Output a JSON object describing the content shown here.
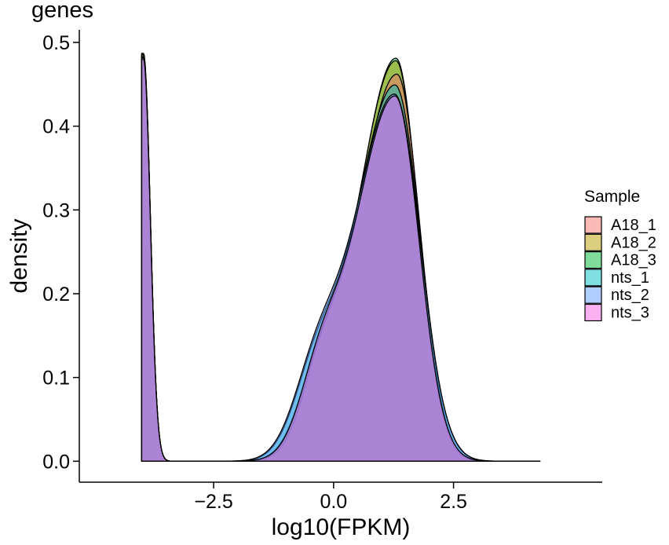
{
  "chart_data": {
    "type": "area",
    "title": "genes",
    "xlabel": "log10(FPKM)",
    "ylabel": "density",
    "xlim": [
      -5.3,
      5.6
    ],
    "ylim": [
      -0.025,
      0.515
    ],
    "xticks": [
      -2.5,
      0.0,
      2.5
    ],
    "xtick_labels": [
      "−2.5",
      "0.0",
      "2.5"
    ],
    "yticks": [
      0.0,
      0.1,
      0.2,
      0.3,
      0.4,
      0.5
    ],
    "ytick_labels": [
      "0.0",
      "0.1",
      "0.2",
      "0.3",
      "0.4",
      "0.5"
    ],
    "grid": false,
    "legend": {
      "title": "Sample",
      "position": "right"
    },
    "x_range": [
      -4.0,
      4.3
    ],
    "series": [
      {
        "name": "A18_1",
        "color": "#F8766D",
        "spike_peak": 0.485,
        "main_peak": 0.462,
        "main_mode": 1.32,
        "main_sd_left": 0.82,
        "main_sd_right": 0.48,
        "shoulder_peak": 0.082,
        "shoulder_mode": -0.25,
        "shoulder_sd": 0.42
      },
      {
        "name": "A18_2",
        "color": "#B79F00",
        "spike_peak": 0.487,
        "main_peak": 0.478,
        "main_mode": 1.3,
        "main_sd_left": 0.8,
        "main_sd_right": 0.47,
        "shoulder_peak": 0.085,
        "shoulder_mode": -0.28,
        "shoulder_sd": 0.44
      },
      {
        "name": "A18_3",
        "color": "#00BA38",
        "spike_peak": 0.486,
        "main_peak": 0.481,
        "main_mode": 1.3,
        "main_sd_left": 0.79,
        "main_sd_right": 0.47,
        "shoulder_peak": 0.085,
        "shoulder_mode": -0.3,
        "shoulder_sd": 0.45
      },
      {
        "name": "nts_1",
        "color": "#00BFC4",
        "spike_peak": 0.483,
        "main_peak": 0.449,
        "main_mode": 1.28,
        "main_sd_left": 0.83,
        "main_sd_right": 0.52,
        "shoulder_peak": 0.09,
        "shoulder_mode": -0.35,
        "shoulder_sd": 0.47
      },
      {
        "name": "nts_2",
        "color": "#619CFF",
        "spike_peak": 0.482,
        "main_peak": 0.438,
        "main_mode": 1.27,
        "main_sd_left": 0.84,
        "main_sd_right": 0.53,
        "shoulder_peak": 0.092,
        "shoulder_mode": -0.35,
        "shoulder_sd": 0.48
      },
      {
        "name": "nts_3",
        "color": "#F564E3",
        "spike_peak": 0.48,
        "main_peak": 0.436,
        "main_mode": 1.28,
        "main_sd_left": 0.84,
        "main_sd_right": 0.5,
        "shoulder_peak": 0.08,
        "shoulder_mode": -0.28,
        "shoulder_sd": 0.43
      }
    ]
  }
}
